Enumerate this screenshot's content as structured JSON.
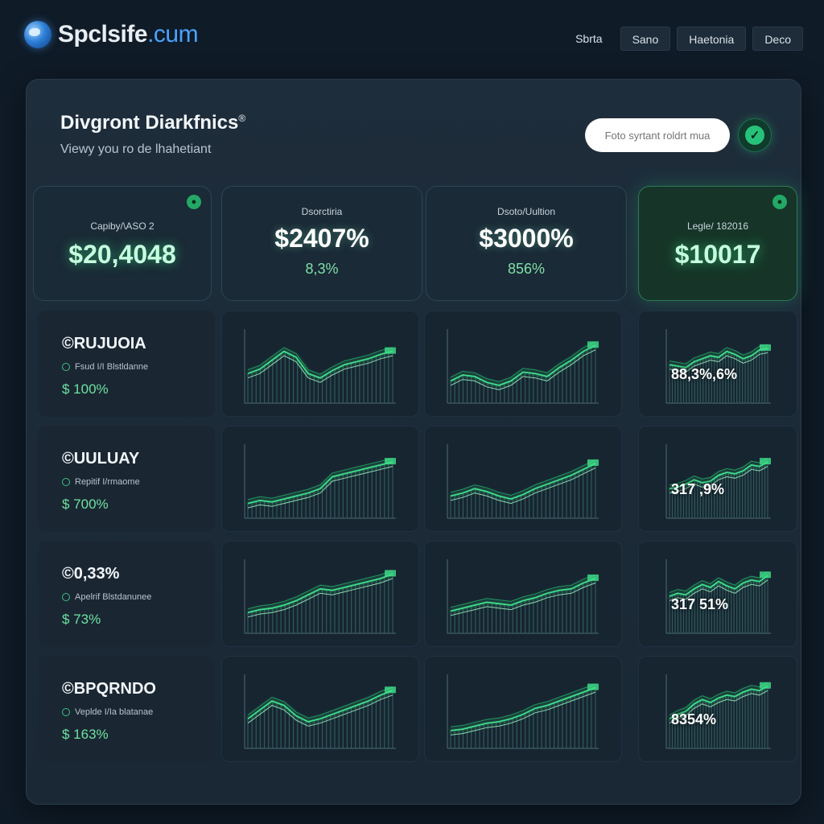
{
  "header": {
    "logo_text": "Spclsife",
    "logo_domain": ".cum",
    "nav": [
      {
        "label": "Sbrta",
        "style": "plain"
      },
      {
        "label": "Sano",
        "style": "button"
      },
      {
        "label": "Haetonia",
        "style": "button"
      },
      {
        "label": "Deco",
        "style": "button"
      }
    ]
  },
  "panel": {
    "title": "Divgront Diarkfnics",
    "title_mark": "®",
    "subtitle": "Viewy you ro de lhahetiant",
    "search_placeholder": "Foto syrtant roldrt mua"
  },
  "kpis": [
    {
      "label": "Capiby/\\ASO 2",
      "value": "$20,4048",
      "sub": "",
      "highlight": false
    },
    {
      "label": "Dsorctiria",
      "value": "$2407%",
      "sub": "8,3%",
      "highlight": false
    },
    {
      "label": "Dsoto/Uultion",
      "value": "$3000%",
      "sub": "856%",
      "highlight": false
    },
    {
      "label": "Legle/ 182016",
      "value": "$10017",
      "sub": "",
      "highlight": true
    }
  ],
  "rows": [
    {
      "name": "©RUJUOIA",
      "meta": "Fsud I/I Blstldanne",
      "value": "$ 100%",
      "pct": "88,3%,6%",
      "series_a": [
        40,
        46,
        58,
        70,
        62,
        40,
        34,
        44,
        52,
        56,
        60,
        66,
        70
      ],
      "series_b": [
        30,
        38,
        36,
        28,
        24,
        30,
        42,
        40,
        36,
        48,
        58,
        70,
        78
      ],
      "series_c": [
        52,
        50,
        48,
        56,
        60,
        64,
        62,
        70,
        66,
        60,
        64,
        72,
        74
      ]
    },
    {
      "name": "©UULUAY",
      "meta": "Repitif I/rmaome",
      "value": "$ 700%",
      "pct": "317 ,9%",
      "series_a": [
        20,
        24,
        22,
        26,
        30,
        34,
        40,
        56,
        60,
        64,
        68,
        72,
        76
      ],
      "series_b": [
        30,
        34,
        40,
        36,
        30,
        26,
        32,
        40,
        46,
        52,
        58,
        66,
        74
      ],
      "series_c": [
        40,
        42,
        46,
        52,
        48,
        50,
        58,
        62,
        60,
        64,
        72,
        70,
        76
      ]
    },
    {
      "name": "©0,33%",
      "meta": "Apelrif Blstdanunee",
      "value": "$ 73%",
      "pct": "317 51%",
      "series_a": [
        28,
        32,
        34,
        38,
        44,
        52,
        60,
        58,
        62,
        66,
        70,
        74,
        80
      ],
      "series_b": [
        30,
        34,
        38,
        42,
        40,
        38,
        44,
        48,
        54,
        58,
        60,
        68,
        74
      ],
      "series_c": [
        50,
        54,
        52,
        60,
        66,
        62,
        70,
        64,
        60,
        68,
        72,
        70,
        78
      ]
    },
    {
      "name": "©BPQRNDO",
      "meta": "Veplde I/Ia blatanae",
      "value": "$ 163%",
      "pct": "8354%",
      "series_a": [
        40,
        52,
        64,
        58,
        44,
        36,
        40,
        46,
        52,
        58,
        64,
        72,
        78
      ],
      "series_b": [
        24,
        26,
        30,
        34,
        36,
        40,
        46,
        54,
        58,
        64,
        70,
        76,
        82
      ],
      "series_c": [
        40,
        46,
        50,
        60,
        66,
        62,
        68,
        72,
        70,
        76,
        80,
        78,
        84
      ]
    }
  ],
  "colors": {
    "accent": "#27c279",
    "line_primary": "#3ee08a",
    "line_secondary": "#8fd6b0",
    "bars": "#2b4a52"
  }
}
